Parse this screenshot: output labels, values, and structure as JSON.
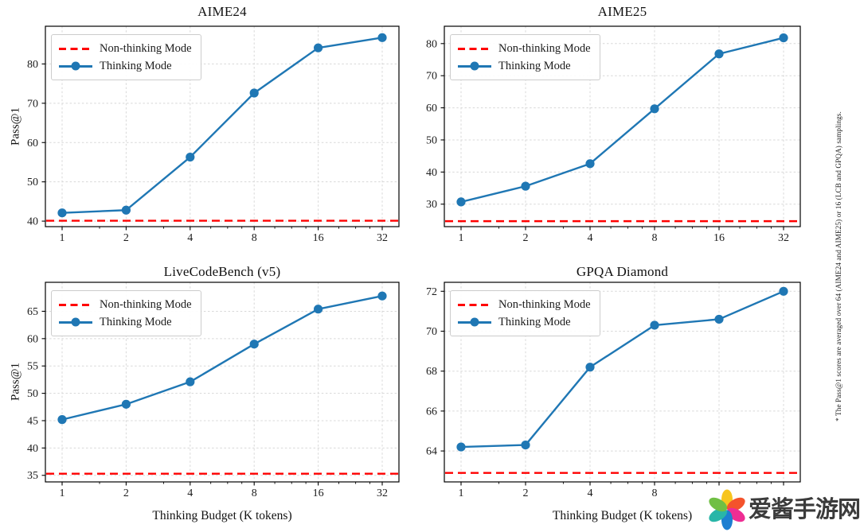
{
  "figure": {
    "xlabel": "Thinking Budget (K tokens)",
    "ylabel": "Pass@1",
    "legend": {
      "non_thinking": "Non-thinking Mode",
      "thinking": "Thinking Mode"
    },
    "note": "* The Pass@1 scores are averaged over 64 (AIME24 and AIME25) or 16 (LCB and GPQA) samplings.",
    "colors": {
      "thinking_line": "#1f77b4",
      "non_thinking_line": "#ff0000",
      "grid": "#d8d8d8",
      "spine": "#000000",
      "tick_text": "#1c1c1c"
    }
  },
  "chart_data": [
    {
      "type": "line",
      "title": "AIME24",
      "x": [
        1,
        2,
        4,
        8,
        16,
        32
      ],
      "xscale": "log2",
      "grid": true,
      "legend_position": "upper left",
      "yticks": [
        40,
        50,
        60,
        70,
        80
      ],
      "ylim": [
        38.6,
        89.6
      ],
      "series": [
        {
          "name": "Thinking Mode",
          "style": "line-markers",
          "values": [
            42.1,
            42.8,
            56.3,
            72.6,
            84.1,
            86.7
          ]
        },
        {
          "name": "Non-thinking Mode",
          "style": "hline-dashed",
          "value": 40.1
        }
      ]
    },
    {
      "type": "line",
      "title": "AIME25",
      "x": [
        1,
        2,
        4,
        8,
        16,
        32
      ],
      "xscale": "log2",
      "grid": true,
      "legend_position": "upper left",
      "yticks": [
        30,
        40,
        50,
        60,
        70,
        80
      ],
      "ylim": [
        23.0,
        85.4
      ],
      "series": [
        {
          "name": "Thinking Mode",
          "style": "line-markers",
          "values": [
            30.7,
            35.6,
            42.6,
            59.7,
            76.8,
            81.8
          ]
        },
        {
          "name": "Non-thinking Mode",
          "style": "hline-dashed",
          "value": 24.7
        }
      ]
    },
    {
      "type": "line",
      "title": "LiveCodeBench (v5)",
      "x": [
        1,
        2,
        4,
        8,
        16,
        32
      ],
      "xscale": "log2",
      "grid": true,
      "legend_position": "upper left",
      "yticks": [
        35,
        40,
        45,
        50,
        55,
        60,
        65
      ],
      "ylim": [
        33.8,
        70.3
      ],
      "series": [
        {
          "name": "Thinking Mode",
          "style": "line-markers",
          "values": [
            45.2,
            48.0,
            52.1,
            59.0,
            65.4,
            67.8
          ]
        },
        {
          "name": "Non-thinking Mode",
          "style": "hline-dashed",
          "value": 35.3
        }
      ]
    },
    {
      "type": "line",
      "title": "GPQA Diamond",
      "x": [
        1,
        2,
        4,
        8,
        16,
        32
      ],
      "xscale": "log2",
      "grid": true,
      "legend_position": "upper left",
      "yticks": [
        64,
        66,
        68,
        70,
        72
      ],
      "ylim": [
        62.45,
        72.45
      ],
      "series": [
        {
          "name": "Thinking Mode",
          "style": "line-markers",
          "values": [
            64.2,
            64.3,
            68.2,
            70.3,
            70.6,
            72.0
          ]
        },
        {
          "name": "Non-thinking Mode",
          "style": "hline-dashed",
          "value": 62.9
        }
      ]
    }
  ],
  "watermark": {
    "text": "爱酱手游网",
    "text_color": "#3b3b3b",
    "icon": "pinwheel-flower-icon",
    "petal_colors": [
      "#f7c51e",
      "#f4532c",
      "#ee2d93",
      "#1d7fd1",
      "#29b6a8",
      "#70bf44"
    ]
  }
}
